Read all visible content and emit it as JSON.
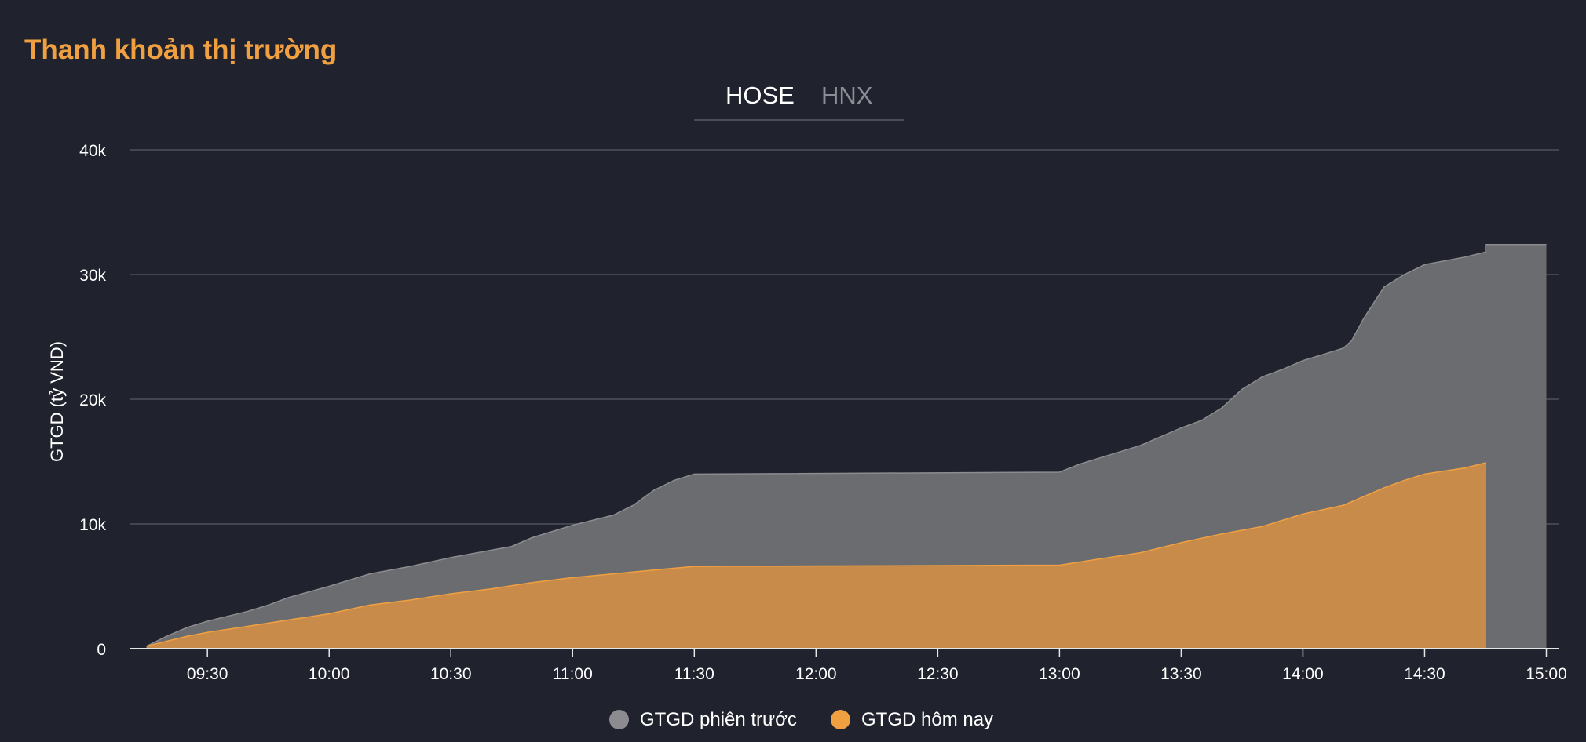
{
  "header": {
    "title": "Thanh khoản thị trường"
  },
  "tabs": [
    {
      "label": "HOSE",
      "active": true
    },
    {
      "label": "HNX",
      "active": false
    }
  ],
  "colors": {
    "background": "#20232d",
    "accent": "#f0a040",
    "previous_fill": "#6b6c70",
    "previous_line": "#8c8c90",
    "today_fill": "#c98b4a",
    "today_line": "#f0a040",
    "grid": "#4e525d",
    "text": "#ffffff"
  },
  "legend": [
    {
      "label": "GTGD phiên trước",
      "color": "#8c8c90"
    },
    {
      "label": "GTGD hôm nay",
      "color": "#f0a040"
    }
  ],
  "chart_data": {
    "type": "area",
    "title": "",
    "ylabel": "GTGD (tỷ VND)",
    "xlabel": "",
    "ylim": [
      0,
      40000
    ],
    "yticks": [
      0,
      10000,
      20000,
      30000,
      40000
    ],
    "ytick_labels": [
      "0",
      "10k",
      "20k",
      "30k",
      "40k"
    ],
    "xlim": [
      "09:11",
      "15:03"
    ],
    "xticks": [
      "09:30",
      "10:00",
      "10:30",
      "11:00",
      "11:30",
      "12:00",
      "12:30",
      "13:00",
      "13:30",
      "14:00",
      "14:30",
      "15:00"
    ],
    "grid": true,
    "legend_position": "bottom-center",
    "series": [
      {
        "name": "GTGD phiên trước",
        "points": [
          [
            "09:15",
            200
          ],
          [
            "09:20",
            1000
          ],
          [
            "09:25",
            1700
          ],
          [
            "09:30",
            2200
          ],
          [
            "09:40",
            3000
          ],
          [
            "09:45",
            3500
          ],
          [
            "09:50",
            4100
          ],
          [
            "10:00",
            5000
          ],
          [
            "10:10",
            6000
          ],
          [
            "10:20",
            6600
          ],
          [
            "10:30",
            7300
          ],
          [
            "10:40",
            7900
          ],
          [
            "10:45",
            8200
          ],
          [
            "10:50",
            8900
          ],
          [
            "11:00",
            9900
          ],
          [
            "11:10",
            10700
          ],
          [
            "11:15",
            11500
          ],
          [
            "11:20",
            12700
          ],
          [
            "11:25",
            13500
          ],
          [
            "11:30",
            14000
          ],
          [
            "13:00",
            14150
          ],
          [
            "13:05",
            14800
          ],
          [
            "13:10",
            15300
          ],
          [
            "13:15",
            15800
          ],
          [
            "13:20",
            16300
          ],
          [
            "13:30",
            17700
          ],
          [
            "13:35",
            18300
          ],
          [
            "13:40",
            19300
          ],
          [
            "13:45",
            20800
          ],
          [
            "13:50",
            21800
          ],
          [
            "13:55",
            22400
          ],
          [
            "14:00",
            23100
          ],
          [
            "14:05",
            23600
          ],
          [
            "14:10",
            24100
          ],
          [
            "14:12",
            24700
          ],
          [
            "14:15",
            26500
          ],
          [
            "14:18",
            28000
          ],
          [
            "14:20",
            29000
          ],
          [
            "14:25",
            30000
          ],
          [
            "14:30",
            30800
          ],
          [
            "14:40",
            31400
          ],
          [
            "14:45",
            31800
          ],
          [
            "14:45",
            32400
          ],
          [
            "15:00",
            32400
          ]
        ]
      },
      {
        "name": "GTGD hôm nay",
        "points": [
          [
            "09:15",
            200
          ],
          [
            "09:20",
            600
          ],
          [
            "09:25",
            1000
          ],
          [
            "09:30",
            1300
          ],
          [
            "09:40",
            1800
          ],
          [
            "09:50",
            2300
          ],
          [
            "10:00",
            2800
          ],
          [
            "10:10",
            3500
          ],
          [
            "10:20",
            3900
          ],
          [
            "10:30",
            4400
          ],
          [
            "10:40",
            4800
          ],
          [
            "10:50",
            5300
          ],
          [
            "11:00",
            5700
          ],
          [
            "11:10",
            6000
          ],
          [
            "11:20",
            6300
          ],
          [
            "11:30",
            6600
          ],
          [
            "13:00",
            6700
          ],
          [
            "13:10",
            7200
          ],
          [
            "13:20",
            7700
          ],
          [
            "13:30",
            8500
          ],
          [
            "13:40",
            9200
          ],
          [
            "13:50",
            9800
          ],
          [
            "14:00",
            10800
          ],
          [
            "14:10",
            11500
          ],
          [
            "14:15",
            12200
          ],
          [
            "14:20",
            12900
          ],
          [
            "14:25",
            13500
          ],
          [
            "14:30",
            14000
          ],
          [
            "14:40",
            14500
          ],
          [
            "14:45",
            14900
          ]
        ]
      }
    ]
  }
}
